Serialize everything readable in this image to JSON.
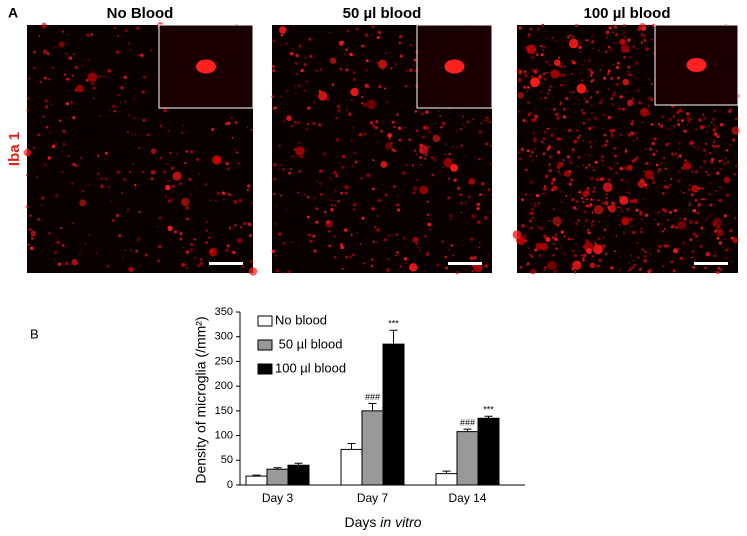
{
  "panel_a": {
    "label": "A",
    "row_label": "Iba 1",
    "columns": [
      "No Blood",
      "50 µl blood",
      "100 µl blood"
    ]
  },
  "chart_data": {
    "type": "bar",
    "panel_label": "B",
    "ylabel": "Density of microglia (/mm²)",
    "xlabel": [
      "Days",
      "in vitro"
    ],
    "categories": [
      "Day 3",
      "Day 7",
      "Day 14"
    ],
    "series": [
      {
        "name": "No blood",
        "color": "#ffffff",
        "values": [
          18,
          72,
          23
        ],
        "errors": [
          2,
          12,
          5
        ],
        "markers": [
          null,
          null,
          null
        ]
      },
      {
        "name": " 50 µl blood",
        "color": "#999999",
        "values": [
          32,
          150,
          108
        ],
        "errors": [
          3,
          15,
          5
        ],
        "markers": [
          null,
          "###",
          "###"
        ]
      },
      {
        "name": "100 µl blood",
        "color": "#000000",
        "values": [
          40,
          285,
          135
        ],
        "errors": [
          4,
          28,
          4
        ],
        "markers": [
          null,
          "***",
          "***"
        ]
      }
    ],
    "ylim": [
      0,
      350
    ],
    "yticks": [
      0,
      50,
      100,
      150,
      200,
      250,
      300,
      350
    ],
    "grid": false,
    "legend": "upper-left"
  }
}
